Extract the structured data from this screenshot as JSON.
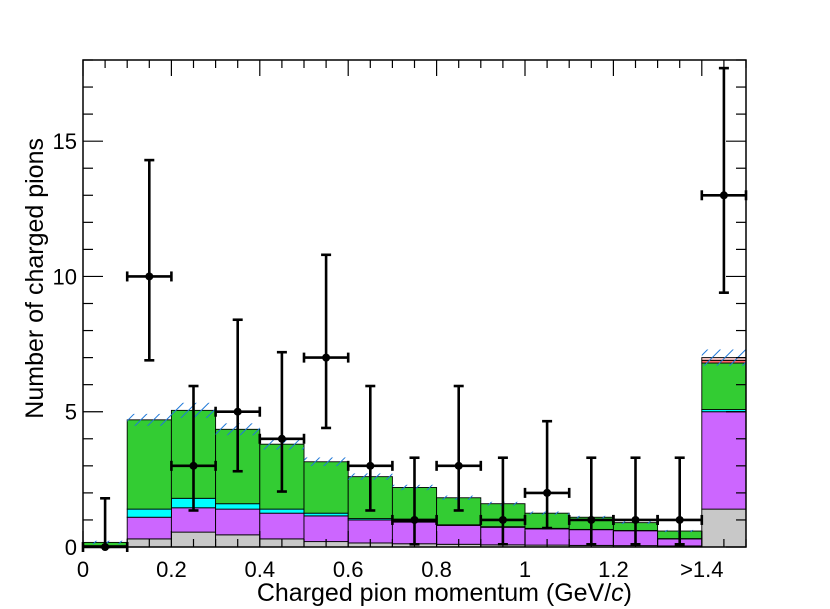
{
  "chart_data": {
    "type": "bar",
    "stacked": true,
    "xlabel": "Charged pion momentum (GeV/",
    "xlabel_italic": "c",
    "xlabel_close": ")",
    "ylabel": "Number of charged pions",
    "xlim": [
      0,
      1.5
    ],
    "ylim": [
      0,
      18
    ],
    "x_edges": [
      0,
      0.1,
      0.2,
      0.3,
      0.4,
      0.5,
      0.6,
      0.7,
      0.8,
      0.9,
      1.0,
      1.1,
      1.2,
      1.3,
      1.4,
      1.5
    ],
    "x_tick_labels": [
      {
        "value": 0,
        "label": "0"
      },
      {
        "value": 0.2,
        "label": "0.2"
      },
      {
        "value": 0.4,
        "label": "0.4"
      },
      {
        "value": 0.6,
        "label": "0.6"
      },
      {
        "value": 0.8,
        "label": "0.8"
      },
      {
        "value": 1.0,
        "label": "1"
      },
      {
        "value": 1.2,
        "label": "1.2"
      },
      {
        "value": 1.4,
        "label": ">1.4"
      }
    ],
    "y_tick_labels": [
      {
        "value": 0,
        "label": "0"
      },
      {
        "value": 5,
        "label": "5"
      },
      {
        "value": 10,
        "label": "10"
      },
      {
        "value": 15,
        "label": "15"
      }
    ],
    "series": [
      {
        "color": "#c8c8c8",
        "values": [
          0.02,
          0.3,
          0.55,
          0.45,
          0.3,
          0.2,
          0.15,
          0.12,
          0.1,
          0.08,
          0.07,
          0.06,
          0.05,
          0.04,
          1.4
        ]
      },
      {
        "color": "#cc66ff",
        "values": [
          0.02,
          0.8,
          0.9,
          0.95,
          0.95,
          0.95,
          0.85,
          0.8,
          0.7,
          0.65,
          0.6,
          0.58,
          0.55,
          0.26,
          3.6
        ]
      },
      {
        "color": "#00ffff",
        "values": [
          0.01,
          0.3,
          0.35,
          0.2,
          0.15,
          0.1,
          0.05,
          0.03,
          0.02,
          0.02,
          0.02,
          0.01,
          0.01,
          0.01,
          0.08
        ]
      },
      {
        "color": "#33cc33",
        "values": [
          0.12,
          3.3,
          3.25,
          2.75,
          2.4,
          1.9,
          1.55,
          1.25,
          1.0,
          0.85,
          0.56,
          0.45,
          0.29,
          0.28,
          1.72
        ]
      },
      {
        "color": "#ff6666",
        "values": [
          0,
          0,
          0,
          0,
          0,
          0,
          0,
          0,
          0,
          0,
          0,
          0,
          0,
          0,
          0.1
        ]
      },
      {
        "color": "#ffcccc",
        "values": [
          0,
          0,
          0,
          0,
          0,
          0,
          0,
          0,
          0,
          0,
          0,
          0,
          0,
          0,
          0.1
        ]
      }
    ],
    "uncertainty_band": {
      "color": "#1f78d8",
      "pattern": "hatched",
      "half_width": [
        0.06,
        0.22,
        0.28,
        0.22,
        0.2,
        0.16,
        0.12,
        0.1,
        0.08,
        0.07,
        0.06,
        0.05,
        0.05,
        0.04,
        0.3
      ]
    },
    "data_points": {
      "x": [
        0.05,
        0.15,
        0.25,
        0.35,
        0.45,
        0.55,
        0.65,
        0.75,
        0.85,
        0.95,
        1.05,
        1.15,
        1.25,
        1.35,
        1.45
      ],
      "y": [
        0,
        10,
        3,
        5,
        4,
        7,
        3,
        1,
        3,
        1,
        2,
        1,
        1,
        1,
        13
      ],
      "err_low": [
        0,
        3.1,
        1.65,
        2.2,
        1.95,
        2.6,
        1.65,
        0.9,
        1.65,
        0.9,
        1.3,
        0.9,
        0.9,
        0.9,
        3.6
      ],
      "err_high": [
        1.8,
        4.3,
        2.95,
        3.4,
        3.2,
        3.8,
        2.95,
        2.3,
        2.95,
        2.3,
        2.65,
        2.3,
        2.3,
        2.3,
        4.7
      ],
      "x_half_width": 0.05,
      "color": "#000000"
    },
    "grid": false,
    "legend": "none"
  }
}
